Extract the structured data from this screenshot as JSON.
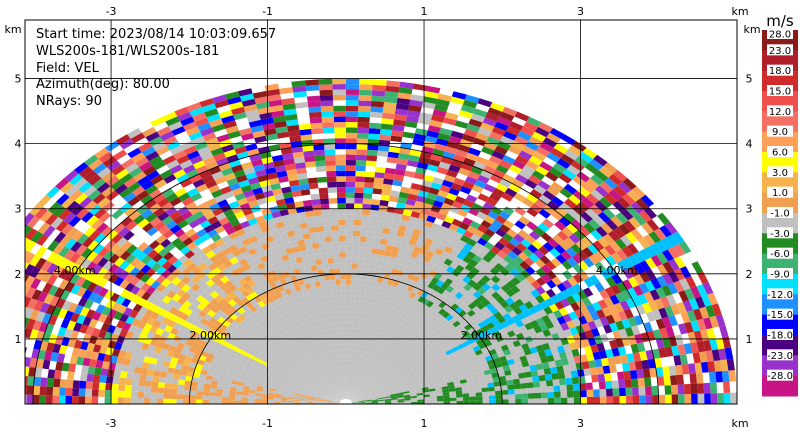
{
  "info": {
    "start_time": "Start time: 2023/08/14 10:03:09.657",
    "instrument": "WLS200s-181/WLS200s-181",
    "field": "Field: VEL",
    "azimuth": "Azimuth(deg): 80.00",
    "nrays": "NRays: 90"
  },
  "chart_data": {
    "type": "heatmap",
    "projection": "polar-rhi",
    "xlim": [
      -4.1,
      5.0
    ],
    "ylim": [
      0,
      5.9
    ],
    "x_ticks": [
      "-3",
      "-1",
      "1",
      "3"
    ],
    "x_tick_values": [
      -3,
      -1,
      1,
      3
    ],
    "y_ticks": [
      "1",
      "2",
      "3",
      "4",
      "5"
    ],
    "y_tick_values": [
      1,
      2,
      3,
      4,
      5
    ],
    "x_unit": "km",
    "y_unit": "km",
    "max_range_km": 5.0,
    "range_rings": [
      {
        "label": "2.00km",
        "radius": 2.0
      },
      {
        "label": "4.00km",
        "radius": 4.0
      }
    ],
    "colorbar": {
      "unit": "m/s",
      "labels": [
        "28.0",
        "23.0",
        "18.0",
        "15.0",
        "12.0",
        "9.0",
        "6.0",
        "3.0",
        "1.0",
        "-1.0",
        "-3.0",
        "-6.0",
        "-9.0",
        "-12.0",
        "-15.0",
        "-18.0",
        "-23.0",
        "-28.0"
      ],
      "colors": [
        "#8b1a1a",
        "#b01e2a",
        "#d02b2b",
        "#f0504d",
        "#f57064",
        "#ffa057",
        "#ffff00",
        "#f5b24e",
        "#f0a050",
        "#c0c0c0",
        "#228b22",
        "#3cb371",
        "#00e0ff",
        "#1e90ff",
        "#0000ff",
        "#4b0082",
        "#9932cc",
        "#c71585"
      ]
    }
  }
}
